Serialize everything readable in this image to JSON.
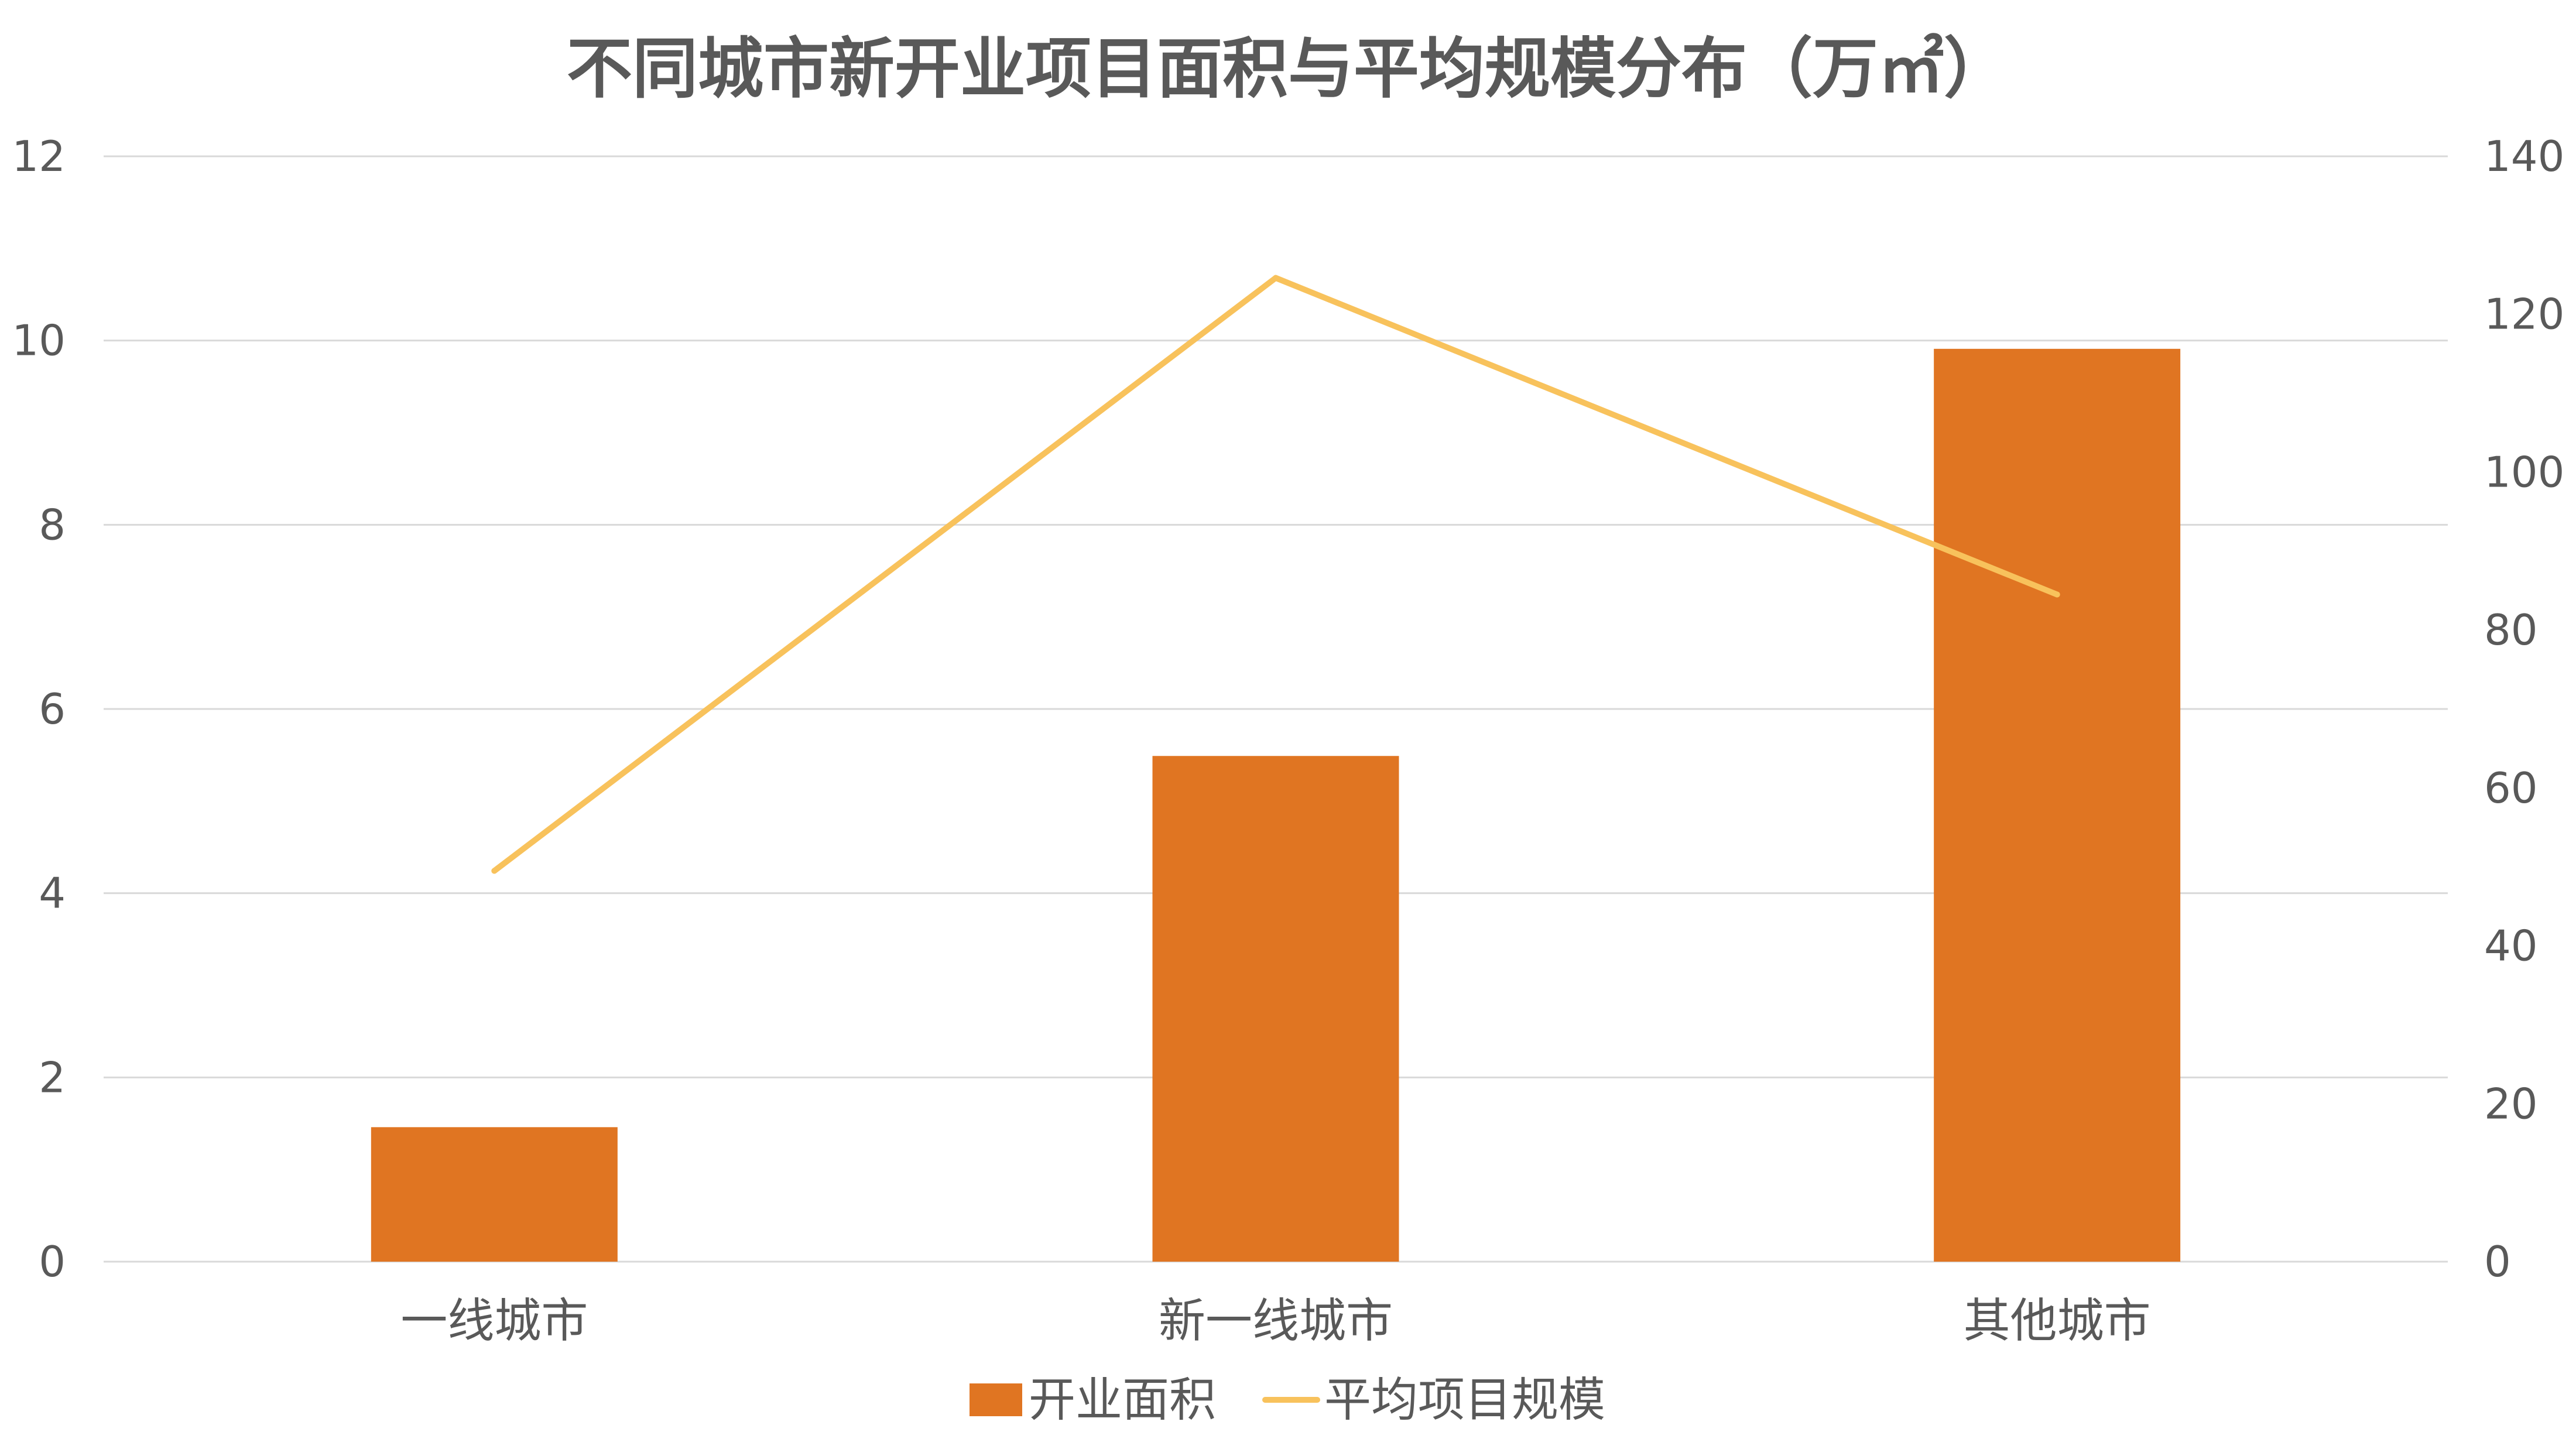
{
  "chart_data": {
    "type": "bar",
    "title": "不同城市新开业项目面积与平均规模分布（万㎡）",
    "categories": [
      "一线城市",
      "新一线城市",
      "其他城市"
    ],
    "series": [
      {
        "name": "开业面积",
        "type": "bar",
        "axis": "left",
        "color": "#E07522",
        "values": [
          1.46,
          5.49,
          9.91
        ]
      },
      {
        "name": "平均项目规模",
        "type": "line",
        "axis": "right",
        "color": "#F8C25C",
        "values": [
          49.5,
          124.6,
          84.5
        ]
      }
    ],
    "ylim": [
      0,
      12
    ],
    "y_ticks": [
      "0",
      "2",
      "4",
      "6",
      "8",
      "10",
      "12"
    ],
    "y2lim": [
      0,
      140
    ],
    "y2_ticks": [
      "0",
      "20",
      "40",
      "60",
      "80",
      "100",
      "120",
      "140"
    ],
    "xlabel": "",
    "ylabel": "",
    "y2label": "",
    "grid": true,
    "legend": "bottom"
  },
  "colors": {
    "text": "#595959",
    "grid": "#D9D9D9",
    "axis": "#D9D9D9"
  }
}
